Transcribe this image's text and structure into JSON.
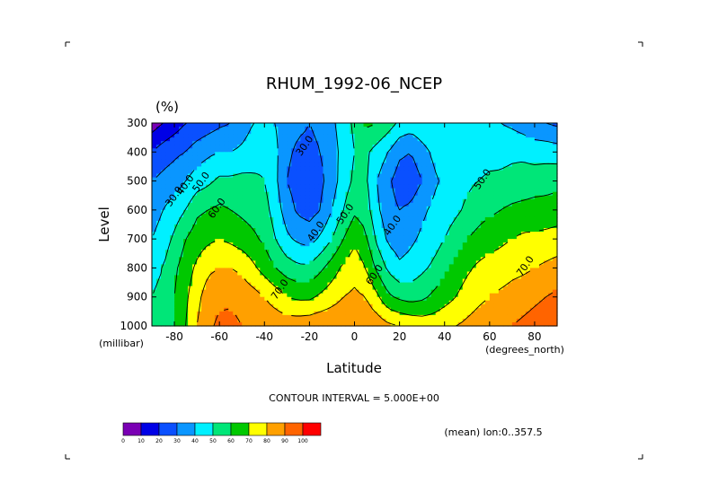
{
  "chart_data": {
    "type": "heatmap",
    "title": "RHUM_1992-06_NCEP",
    "units": "(%)",
    "xlabel": "Latitude",
    "ylabel": "Level",
    "x_unit_label": "(degrees_north)",
    "y_unit_label": "(millibar)",
    "xlim": [
      -90,
      90
    ],
    "ylim": [
      1000,
      300
    ],
    "x_ticks": [
      -80,
      -60,
      -40,
      -20,
      0,
      20,
      40,
      60,
      80
    ],
    "x_tick_labels": [
      "-80",
      "-60",
      "-40",
      "-20",
      "0",
      "20",
      "40",
      "60",
      "80"
    ],
    "y_ticks": [
      300,
      400,
      500,
      600,
      700,
      800,
      900,
      1000
    ],
    "y_tick_labels": [
      "300",
      "400",
      "500",
      "600",
      "700",
      "800",
      "900",
      "1000"
    ],
    "contour_interval_text": "CONTOUR INTERVAL = 5.000E+00",
    "mean_text": "(mean) lon:0..357.5",
    "levels": [
      0,
      10,
      20,
      30,
      40,
      50,
      60,
      70,
      80,
      90,
      100
    ],
    "level_labels": [
      "0",
      "10",
      "20",
      "30",
      "40",
      "50",
      "60",
      "70",
      "80",
      "90",
      "100"
    ],
    "colors": [
      "#7a00b4",
      "#0000e6",
      "#0a50ff",
      "#0a96ff",
      "#00f0ff",
      "#00e678",
      "#00c800",
      "#ffff00",
      "#ffa000",
      "#ff6400",
      "#ff0000"
    ],
    "contour_labels": [
      {
        "text": "30.0",
        "lat": -21,
        "p": 385
      },
      {
        "text": "30.0",
        "lat": -79,
        "p": 560
      },
      {
        "text": "40.0",
        "lat": -74,
        "p": 520
      },
      {
        "text": "50.0",
        "lat": -67,
        "p": 510
      },
      {
        "text": "60.0",
        "lat": -60,
        "p": 600
      },
      {
        "text": "70.0",
        "lat": -32,
        "p": 880
      },
      {
        "text": "40.0",
        "lat": -16,
        "p": 680
      },
      {
        "text": "50.0",
        "lat": -3,
        "p": 620
      },
      {
        "text": "60.0",
        "lat": 10,
        "p": 830
      },
      {
        "text": "40.0",
        "lat": 18,
        "p": 660
      },
      {
        "text": "50.0",
        "lat": 58,
        "p": 500
      },
      {
        "text": "70.0",
        "lat": 77,
        "p": 800
      }
    ],
    "profiles": {
      "lat": [
        -90,
        -85,
        -80,
        -75,
        -70,
        -65,
        -60,
        -55,
        -50,
        -45,
        -40,
        -35,
        -30,
        -25,
        -20,
        -15,
        -10,
        -5,
        0,
        5,
        10,
        15,
        20,
        25,
        30,
        35,
        40,
        45,
        50,
        55,
        60,
        65,
        70,
        75,
        80,
        85,
        90
      ],
      "p": [
        300,
        400,
        500,
        600,
        700,
        800,
        900,
        1000
      ],
      "rh": [
        [
          5,
          20,
          30,
          35,
          40,
          48,
          50,
          55
        ],
        [
          10,
          25,
          33,
          40,
          45,
          50,
          52,
          55
        ],
        [
          15,
          28,
          35,
          45,
          52,
          58,
          60,
          60
        ],
        [
          20,
          30,
          40,
          50,
          60,
          65,
          68,
          70
        ],
        [
          22,
          35,
          45,
          58,
          65,
          72,
          77,
          80
        ],
        [
          25,
          38,
          48,
          60,
          68,
          78,
          85,
          88
        ],
        [
          28,
          40,
          52,
          62,
          70,
          80,
          88,
          92
        ],
        [
          30,
          40,
          52,
          60,
          68,
          80,
          88,
          93
        ],
        [
          35,
          42,
          53,
          58,
          65,
          78,
          86,
          90
        ],
        [
          40,
          45,
          52,
          56,
          62,
          72,
          84,
          89
        ],
        [
          42,
          48,
          50,
          54,
          58,
          66,
          80,
          88
        ],
        [
          40,
          42,
          42,
          45,
          50,
          60,
          75,
          87
        ],
        [
          35,
          32,
          30,
          35,
          42,
          55,
          70,
          86
        ],
        [
          32,
          28,
          25,
          28,
          38,
          52,
          68,
          86
        ],
        [
          30,
          28,
          24,
          26,
          36,
          52,
          68,
          87
        ],
        [
          32,
          30,
          28,
          30,
          42,
          58,
          72,
          88
        ],
        [
          38,
          35,
          35,
          40,
          50,
          65,
          76,
          88
        ],
        [
          45,
          44,
          45,
          50,
          60,
          72,
          80,
          88
        ],
        [
          52,
          50,
          52,
          58,
          68,
          76,
          82,
          88
        ],
        [
          62,
          52,
          52,
          55,
          62,
          70,
          80,
          88
        ],
        [
          60,
          46,
          40,
          42,
          48,
          58,
          72,
          86
        ],
        [
          55,
          40,
          32,
          34,
          38,
          48,
          62,
          82
        ],
        [
          48,
          32,
          25,
          30,
          35,
          42,
          58,
          80
        ],
        [
          45,
          30,
          24,
          32,
          38,
          44,
          56,
          78
        ],
        [
          48,
          36,
          30,
          38,
          42,
          48,
          58,
          76
        ],
        [
          50,
          42,
          38,
          42,
          45,
          52,
          62,
          76
        ],
        [
          48,
          45,
          42,
          45,
          50,
          58,
          66,
          78
        ],
        [
          45,
          45,
          45,
          48,
          55,
          63,
          70,
          80
        ],
        [
          44,
          45,
          48,
          52,
          60,
          68,
          75,
          82
        ],
        [
          43,
          45,
          50,
          56,
          63,
          72,
          78,
          84
        ],
        [
          42,
          46,
          52,
          58,
          66,
          74,
          80,
          86
        ],
        [
          40,
          47,
          52,
          60,
          68,
          75,
          82,
          88
        ],
        [
          38,
          48,
          53,
          62,
          70,
          77,
          84,
          90
        ],
        [
          35,
          48,
          54,
          63,
          72,
          78,
          86,
          92
        ],
        [
          32,
          46,
          55,
          64,
          72,
          80,
          88,
          94
        ],
        [
          30,
          46,
          56,
          64,
          73,
          82,
          90,
          96
        ],
        [
          28,
          45,
          57,
          65,
          74,
          84,
          92,
          98
        ]
      ]
    }
  }
}
